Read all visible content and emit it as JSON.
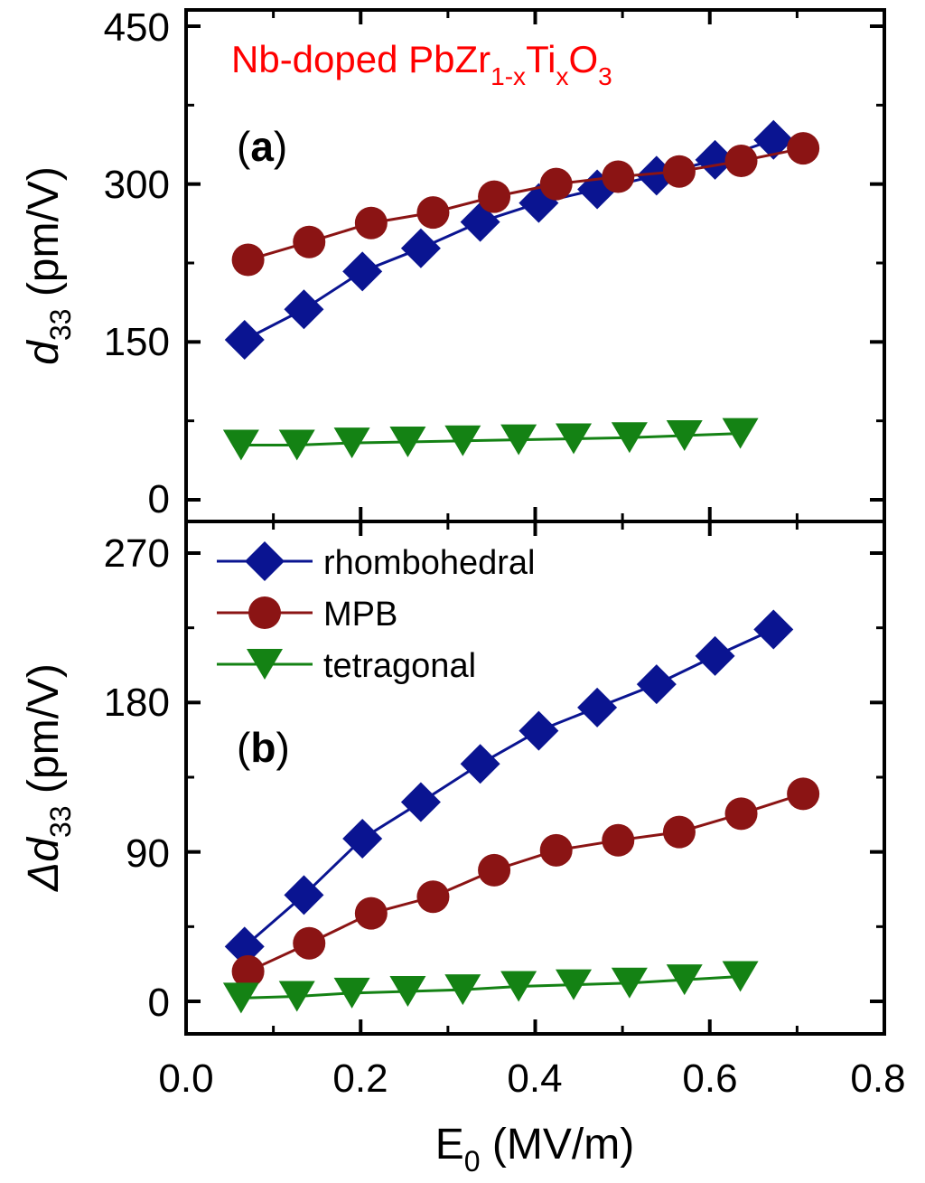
{
  "chart_data": {
    "type": "line",
    "colors": {
      "rhombohedral": "#0a1491",
      "MPB": "#8b1414",
      "tetragonal": "#148214",
      "annotation": "#ff0000"
    },
    "annotation": {
      "base": "Nb-doped PbZr",
      "sub1": "1-x",
      "mid": "Ti",
      "sub2": "x",
      "o": "O",
      "sub3": "3"
    },
    "xlabel": {
      "main": "E",
      "sub": "0",
      "unit": " (MV/m)"
    },
    "xlim": [
      0.0,
      0.8
    ],
    "xticks": [
      "0.0",
      "0.2",
      "0.4",
      "0.6",
      "0.8"
    ],
    "legend": {
      "position": "top-left of panel (b)",
      "entries": [
        "rhombohedral",
        "MPB",
        "tetragonal"
      ]
    },
    "panels": [
      {
        "label": "a",
        "ylabel": {
          "main": "d",
          "sub": "33",
          "unit": " (pm/V)"
        },
        "ylim": [
          0,
          450
        ],
        "yticks": [
          "0",
          "150",
          "300",
          "450"
        ],
        "series": [
          {
            "name": "rhombohedral",
            "marker": "diamond",
            "x": [
              0.067,
              0.135,
              0.202,
              0.269,
              0.337,
              0.404,
              0.471,
              0.539,
              0.606,
              0.673
            ],
            "y": [
              152,
              181,
              217,
              239,
              264,
              282,
              295,
              308,
              323,
              342
            ]
          },
          {
            "name": "MPB",
            "marker": "circle",
            "x": [
              0.071,
              0.141,
              0.212,
              0.283,
              0.353,
              0.424,
              0.495,
              0.565,
              0.636,
              0.707
            ],
            "y": [
              228,
              245,
              263,
              273,
              288,
              300,
              307,
              312,
              322,
              334
            ]
          },
          {
            "name": "tetragonal",
            "marker": "triangle-down",
            "x": [
              0.063,
              0.127,
              0.19,
              0.254,
              0.317,
              0.381,
              0.444,
              0.508,
              0.571,
              0.635
            ],
            "y": [
              52,
              52,
              54,
              55,
              56,
              57,
              58,
              59,
              61,
              63
            ]
          }
        ]
      },
      {
        "label": "b",
        "ylabel": {
          "main": "Δd",
          "sub": "33",
          "unit": " (pm/V)"
        },
        "ylim": [
          0,
          270
        ],
        "yticks": [
          "0",
          "90",
          "180",
          "270"
        ],
        "series": [
          {
            "name": "rhombohedral",
            "marker": "diamond",
            "x": [
              0.067,
              0.135,
              0.202,
              0.269,
              0.337,
              0.404,
              0.471,
              0.539,
              0.606,
              0.673
            ],
            "y": [
              33,
              64,
              98,
              120,
              143,
              163,
              177,
              191,
              208,
              224
            ]
          },
          {
            "name": "MPB",
            "marker": "circle",
            "x": [
              0.071,
              0.141,
              0.212,
              0.283,
              0.353,
              0.424,
              0.495,
              0.565,
              0.636,
              0.707
            ],
            "y": [
              18,
              35,
              53,
              63,
              79,
              91,
              97,
              102,
              113,
              125
            ]
          },
          {
            "name": "tetragonal",
            "marker": "triangle-down",
            "x": [
              0.063,
              0.127,
              0.19,
              0.254,
              0.317,
              0.381,
              0.444,
              0.508,
              0.571,
              0.635
            ],
            "y": [
              2,
              3,
              5,
              6,
              7,
              9,
              10,
              11,
              13,
              15
            ]
          }
        ]
      }
    ]
  }
}
